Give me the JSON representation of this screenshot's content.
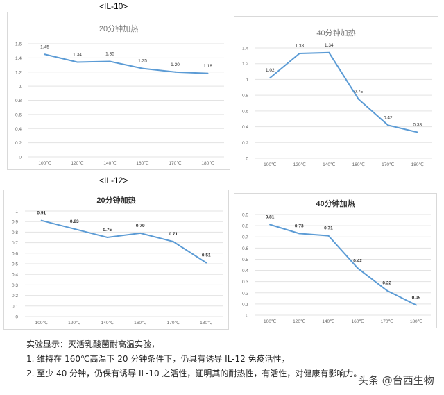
{
  "labels": {
    "il10": "<IL-10>",
    "il12": "<IL-12>"
  },
  "line_color": "#5b9bd5",
  "chart_data": [
    {
      "type": "line",
      "group": "<IL-10>",
      "title": "20分钟加热",
      "categories": [
        "100℃",
        "120℃",
        "140℃",
        "160℃",
        "170℃",
        "180℃"
      ],
      "values": [
        1.45,
        1.34,
        1.35,
        1.25,
        1.2,
        1.18
      ],
      "value_labels": [
        "1.45",
        "1.34",
        "1.35",
        "1.25",
        "1.20",
        "1.18"
      ],
      "ylim": [
        0,
        1.6
      ],
      "yticks": [
        "0",
        "0.2",
        "0.4",
        "0.6",
        "0.8",
        "1",
        "1.2",
        "1.4",
        "1.6"
      ],
      "grid": true
    },
    {
      "type": "line",
      "group": "<IL-10>",
      "title": "40分钟加热",
      "categories": [
        "100℃",
        "120℃",
        "140℃",
        "160℃",
        "170℃",
        "180℃"
      ],
      "values": [
        1.02,
        1.33,
        1.34,
        0.75,
        0.42,
        0.33
      ],
      "value_labels": [
        "1.02",
        "1.33",
        "1.34",
        "0.75",
        "0.42",
        "0.33"
      ],
      "ylim": [
        0,
        1.4
      ],
      "yticks": [
        "0",
        "0.2",
        "0.4",
        "0.6",
        "0.8",
        "1",
        "1.2",
        "1.4"
      ],
      "grid": true
    },
    {
      "type": "line",
      "group": "<IL-12>",
      "title": "20分钟加热",
      "categories": [
        "100℃",
        "120℃",
        "140℃",
        "160℃",
        "170℃",
        "180℃"
      ],
      "values": [
        0.91,
        0.83,
        0.75,
        0.79,
        0.71,
        0.51
      ],
      "value_labels": [
        "0.91",
        "0.83",
        "0.75",
        "0.79",
        "0.71",
        "0.51"
      ],
      "ylim": [
        0,
        1
      ],
      "yticks": [
        "0",
        "0.1",
        "0.2",
        "0.3",
        "0.4",
        "0.5",
        "0.6",
        "0.7",
        "0.8",
        "0.9",
        "1"
      ],
      "grid": true
    },
    {
      "type": "line",
      "group": "<IL-12>",
      "title": "40分钟加热",
      "categories": [
        "100℃",
        "120℃",
        "140℃",
        "160℃",
        "170℃",
        "180℃"
      ],
      "values": [
        0.81,
        0.73,
        0.71,
        0.42,
        0.22,
        0.09
      ],
      "value_labels": [
        "0.81",
        "0.73",
        "0.71",
        "0.42",
        "0.22",
        "0.09"
      ],
      "ylim": [
        0,
        0.9
      ],
      "yticks": [
        "0",
        "0.1",
        "0.2",
        "0.3",
        "0.4",
        "0.5",
        "0.6",
        "0.7",
        "0.8",
        "0.9"
      ],
      "grid": true
    }
  ],
  "notes": {
    "heading": "实验显示：灭活乳酸菌耐高温实验，",
    "item1": "1.   维持在 160℃高温下 20 分钟条件下，仍具有诱导 IL-12 免疫活性，",
    "item2": "2.   至少 40 分钟，仍保有诱导 IL-10 之活性，证明其的耐热性，有活性，对健康有影响力。"
  },
  "watermark": "头条 @台西生物"
}
